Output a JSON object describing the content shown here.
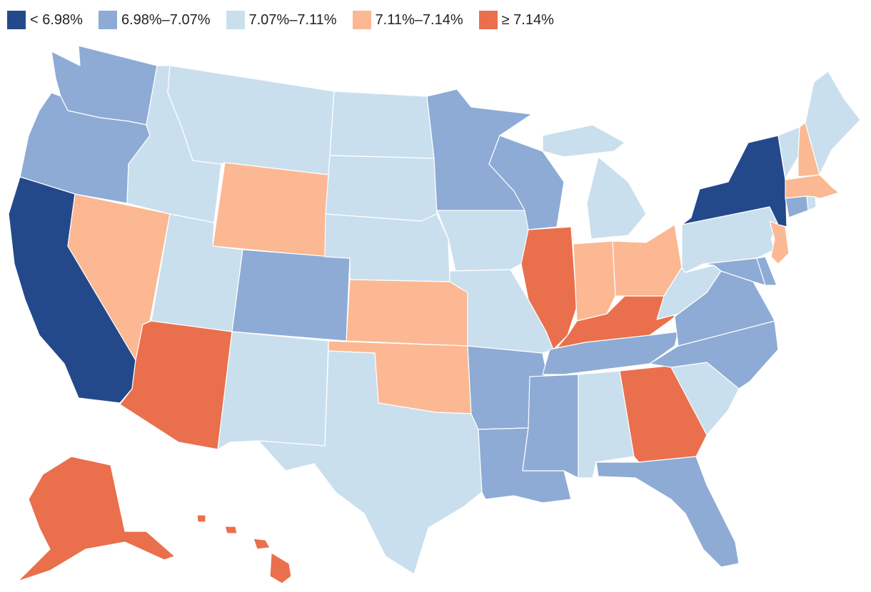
{
  "legend": {
    "items": [
      {
        "label": "< 6.98%",
        "color": "#24498b"
      },
      {
        "label": "6.98%–7.07%",
        "color": "#8dabd5"
      },
      {
        "label": "7.07%–7.11%",
        "color": "#c9dfee"
      },
      {
        "label": "7.11%–7.14%",
        "color": "#fbb893"
      },
      {
        "label": "≥ 7.14%",
        "color": "#ea6f4c"
      }
    ]
  },
  "states": {
    "AK": 4,
    "AL": 2,
    "AR": 1,
    "AZ": 4,
    "CA": 0,
    "CO": 1,
    "CT": 1,
    "DE": 1,
    "FL": 1,
    "GA": 4,
    "HI": 4,
    "IA": 2,
    "ID": 2,
    "IL": 4,
    "IN": 3,
    "KS": 3,
    "KY": 4,
    "LA": 1,
    "MA": 3,
    "MD": 1,
    "ME": 2,
    "MI": 2,
    "MN": 1,
    "MO": 2,
    "MS": 1,
    "MT": 2,
    "NC": 1,
    "ND": 2,
    "NE": 2,
    "NH": 3,
    "NJ": 3,
    "NM": 2,
    "NV": 3,
    "NY": 0,
    "OH": 3,
    "OK": 3,
    "OR": 1,
    "PA": 2,
    "RI": 2,
    "SC": 2,
    "SD": 2,
    "TN": 1,
    "TX": 2,
    "UT": 2,
    "VA": 1,
    "VT": 2,
    "WA": 1,
    "WI": 1,
    "WV": 2,
    "WY": 3
  }
}
